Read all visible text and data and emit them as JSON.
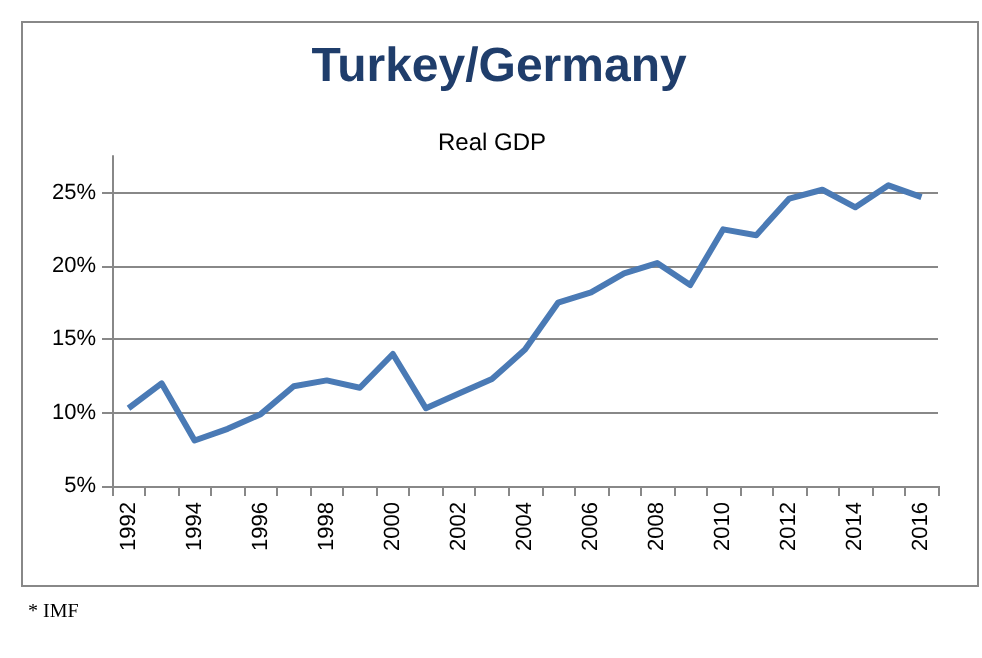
{
  "chart_data": {
    "type": "line",
    "title": "Turkey/Germany",
    "subtitle": "Real GDP",
    "categories": [
      "1992",
      null,
      "1994",
      null,
      "1996",
      null,
      "1998",
      null,
      "2000",
      null,
      "2002",
      null,
      "2004",
      null,
      "2006",
      null,
      "2008",
      null,
      "2010",
      null,
      "2012",
      null,
      "2014",
      null,
      "2016"
    ],
    "series": [
      {
        "color": "#4a7ab5",
        "values": [
          10.3,
          12.0,
          8.1,
          8.9,
          9.9,
          11.8,
          12.2,
          11.7,
          14.0,
          10.3,
          11.3,
          12.3,
          14.3,
          17.5,
          18.2,
          19.5,
          20.2,
          18.7,
          22.5,
          22.1,
          24.6,
          25.2,
          24.0,
          25.5,
          24.7
        ]
      }
    ],
    "ylim": [
      5,
      27.5
    ],
    "yticks": [
      {
        "value": 5,
        "label": "5%"
      },
      {
        "value": 10,
        "label": "10%"
      },
      {
        "value": 15,
        "label": "15%"
      },
      {
        "value": 20,
        "label": "20%"
      },
      {
        "value": 25,
        "label": "25%"
      }
    ],
    "grid": "y",
    "marker": "none",
    "line_style": "solid",
    "annotations": [
      "* IMF"
    ]
  }
}
